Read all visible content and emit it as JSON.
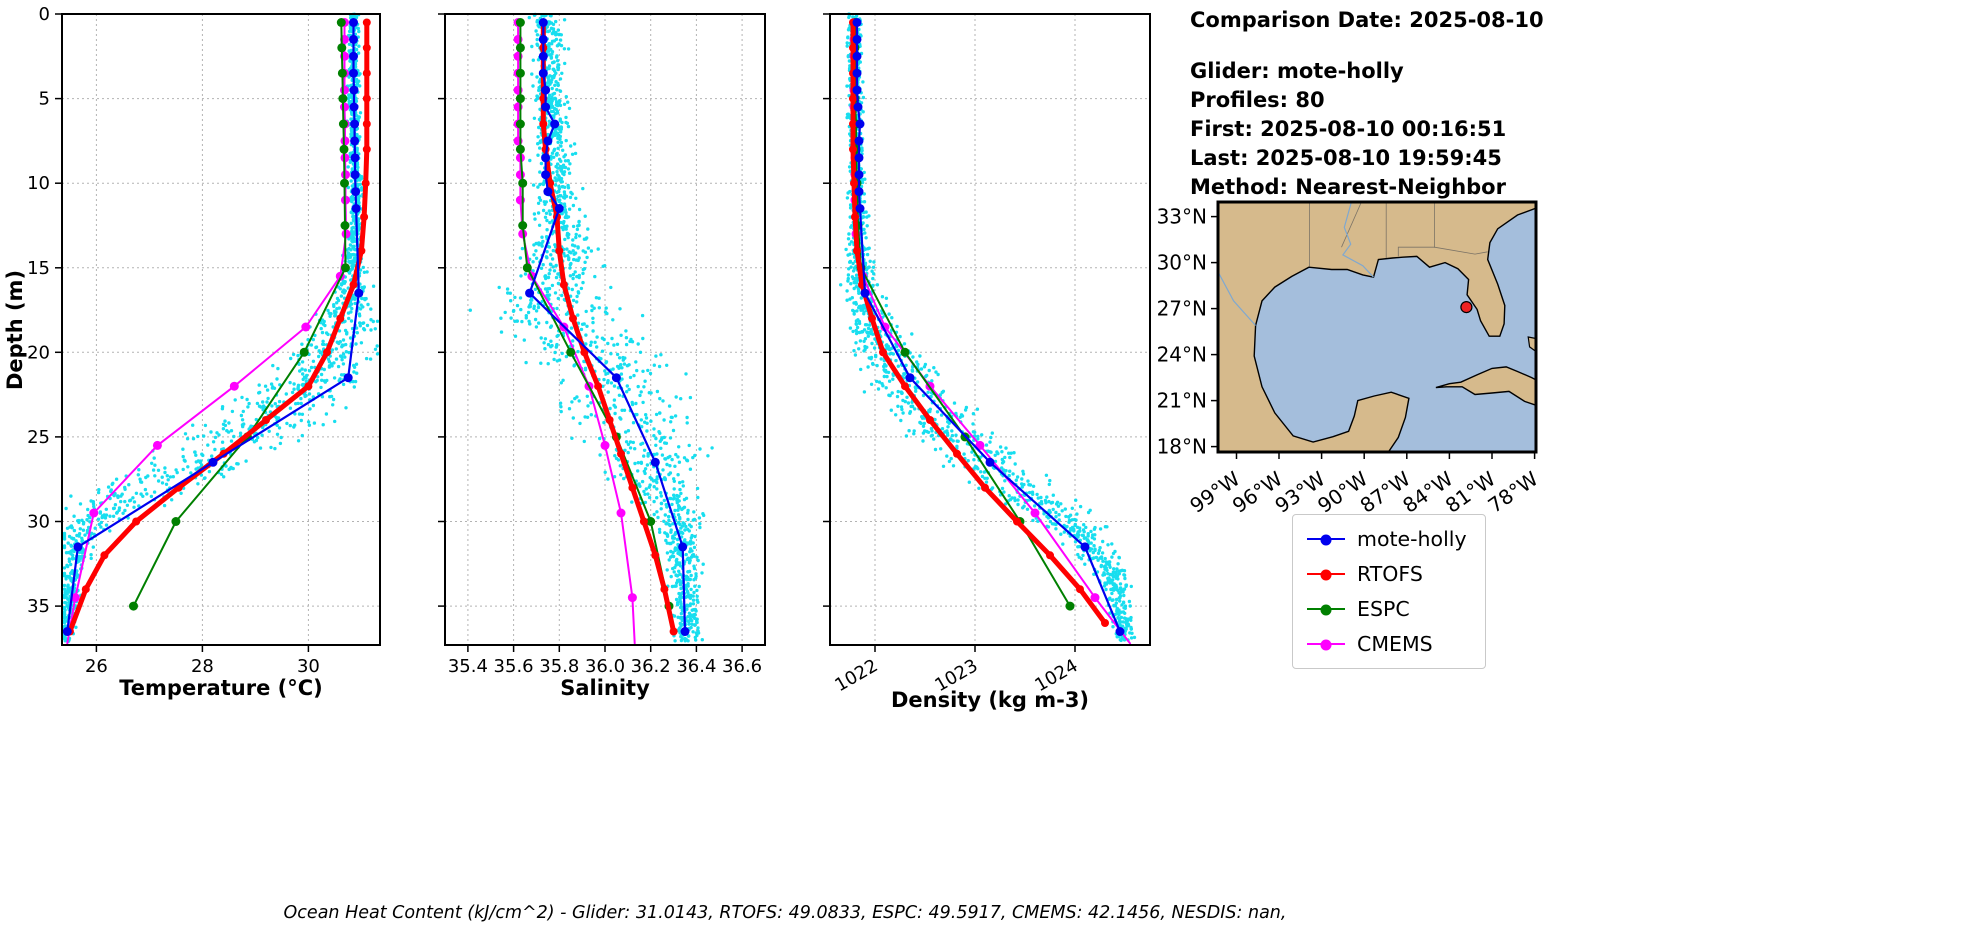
{
  "info": {
    "comparison_date": "Comparison Date: 2025-08-10",
    "glider": "Glider: mote-holly",
    "profiles": "Profiles: 80",
    "first": "First: 2025-08-10 00:16:51",
    "last": "Last: 2025-08-10 19:59:45",
    "method": "Method: Nearest-Neighbor"
  },
  "caption": "Ocean Heat Content (kJ/cm^2) - Glider: 31.0143,  RTOFS: 49.0833,  ESPC: 49.5917,  CMEMS: 42.1456,  NESDIS: nan,",
  "legend": {
    "items": [
      {
        "label": "mote-holly",
        "color": "#0000ee"
      },
      {
        "label": "RTOFS",
        "color": "#ff0000"
      },
      {
        "label": "ESPC",
        "color": "#008000"
      },
      {
        "label": "CMEMS",
        "color": "#ff00ff"
      }
    ]
  },
  "chart_data": [
    {
      "type": "line",
      "panel_name": "temperature",
      "xlabel": "Temperature (°C)",
      "ylabel": "Depth (m)",
      "xlim": [
        25.35,
        31.35
      ],
      "ylim": [
        0,
        37.3
      ],
      "xticks": [
        26,
        28,
        30
      ],
      "xticklabels": [
        "26",
        "28",
        "30"
      ],
      "yticks": [
        0,
        5,
        10,
        15,
        20,
        25,
        30,
        35
      ],
      "yticklabels": [
        "0",
        "5",
        "10",
        "15",
        "20",
        "25",
        "30",
        "35"
      ],
      "rotate_xticklabels": false,
      "grid": true,
      "scatter": {
        "name": "glider-raw-points",
        "color": "#00dbee",
        "seed": 7,
        "n": 1500,
        "depths": [
          0,
          5,
          10,
          13,
          15,
          17,
          19,
          21,
          23,
          25,
          27,
          29,
          31,
          33,
          35,
          37
        ],
        "mean": [
          30.85,
          30.85,
          30.88,
          30.9,
          30.85,
          30.8,
          30.6,
          30.3,
          29.6,
          28.8,
          27.6,
          26.3,
          25.7,
          25.55,
          25.5,
          25.45
        ],
        "spread": [
          0.07,
          0.07,
          0.08,
          0.1,
          0.15,
          0.3,
          0.5,
          0.6,
          0.8,
          0.85,
          0.8,
          0.6,
          0.3,
          0.15,
          0.12,
          0.1
        ]
      },
      "series": [
        {
          "name": "CMEMS",
          "color": "#ff00ff",
          "lw": 2,
          "marker_r": 4.5,
          "depths": [
            0.5,
            1.5,
            2.5,
            3.5,
            4.5,
            5.5,
            6.5,
            7.5,
            8.5,
            9.5,
            11,
            13,
            15.5,
            18.5,
            22,
            25.5,
            29.5,
            34.5,
            37.2
          ],
          "values": [
            30.68,
            30.68,
            30.68,
            30.68,
            30.68,
            30.68,
            30.69,
            30.69,
            30.69,
            30.7,
            30.7,
            30.71,
            30.6,
            29.95,
            28.6,
            27.15,
            25.95,
            25.6,
            25.45
          ]
        },
        {
          "name": "ESPC",
          "color": "#008000",
          "lw": 2,
          "marker_r": 4.5,
          "depths": [
            0.5,
            2,
            3.5,
            5,
            6.5,
            8,
            10,
            12.5,
            15,
            20,
            25,
            30,
            35
          ],
          "values": [
            30.62,
            30.63,
            30.64,
            30.65,
            30.66,
            30.67,
            30.68,
            30.69,
            30.7,
            29.92,
            28.85,
            27.5,
            26.7
          ]
        },
        {
          "name": "RTOFS",
          "color": "#ff0000",
          "lw": 5,
          "marker_r": 4,
          "depths": [
            0.5,
            2,
            3.5,
            5,
            6.5,
            8,
            10,
            12,
            14,
            16,
            18,
            20,
            22,
            24,
            26,
            28,
            30,
            32,
            34,
            36.5
          ],
          "values": [
            31.1,
            31.1,
            31.1,
            31.1,
            31.1,
            31.1,
            31.08,
            31.05,
            31.0,
            30.85,
            30.6,
            30.35,
            30.0,
            29.2,
            28.4,
            27.55,
            26.75,
            26.15,
            25.8,
            25.5
          ]
        },
        {
          "name": "mote-holly",
          "color": "#0000ee",
          "lw": 2.2,
          "marker_r": 4.5,
          "depths": [
            0.5,
            1.5,
            2.5,
            3.5,
            4.5,
            5.5,
            6.5,
            7.5,
            8.5,
            9.5,
            10.5,
            11.5,
            16.5,
            21.5,
            26.5,
            31.5,
            36.5
          ],
          "values": [
            30.85,
            30.85,
            30.85,
            30.85,
            30.86,
            30.86,
            30.87,
            30.87,
            30.88,
            30.88,
            30.89,
            30.9,
            30.95,
            30.75,
            28.2,
            25.65,
            25.45
          ]
        }
      ]
    },
    {
      "type": "line",
      "panel_name": "salinity",
      "xlabel": "Salinity",
      "ylabel": "Depth (m)",
      "xlim": [
        35.3,
        36.7
      ],
      "ylim": [
        0,
        37.3
      ],
      "xticks": [
        35.4,
        35.6,
        35.8,
        36.0,
        36.2,
        36.4,
        36.6
      ],
      "xticklabels": [
        "35.4",
        "35.6",
        "35.8",
        "36.0",
        "36.2",
        "36.4",
        "36.6"
      ],
      "yticks": [
        0,
        5,
        10,
        15,
        20,
        25,
        30,
        35
      ],
      "yticklabels": [
        "0",
        "5",
        "10",
        "15",
        "20",
        "25",
        "30",
        "35"
      ],
      "rotate_xticklabels": false,
      "grid": true,
      "scatter": {
        "name": "glider-raw-points",
        "color": "#00dbee",
        "seed": 11,
        "n": 1500,
        "depths": [
          0,
          5,
          10,
          13,
          15,
          17,
          19,
          21,
          23,
          25,
          27,
          29,
          31,
          33,
          35,
          37
        ],
        "mean": [
          35.75,
          35.76,
          35.78,
          35.82,
          35.8,
          35.75,
          35.85,
          36.0,
          36.1,
          36.15,
          36.2,
          36.28,
          36.33,
          36.35,
          36.36,
          36.36
        ],
        "spread": [
          0.05,
          0.05,
          0.06,
          0.09,
          0.12,
          0.18,
          0.22,
          0.22,
          0.2,
          0.18,
          0.15,
          0.1,
          0.06,
          0.05,
          0.04,
          0.04
        ]
      },
      "series": [
        {
          "name": "CMEMS",
          "color": "#ff00ff",
          "lw": 2,
          "marker_r": 4.5,
          "depths": [
            0.5,
            1.5,
            2.5,
            3.5,
            4.5,
            5.5,
            6.5,
            7.5,
            8.5,
            9.5,
            11,
            13,
            15.5,
            18.5,
            22,
            25.5,
            29.5,
            34.5,
            37.2
          ],
          "values": [
            35.62,
            35.62,
            35.62,
            35.62,
            35.62,
            35.62,
            35.62,
            35.62,
            35.63,
            35.63,
            35.63,
            35.64,
            35.68,
            35.82,
            35.93,
            36.0,
            36.07,
            36.12,
            36.13
          ]
        },
        {
          "name": "ESPC",
          "color": "#008000",
          "lw": 2,
          "marker_r": 4.5,
          "depths": [
            0.5,
            2,
            3.5,
            5,
            6.5,
            8,
            10,
            12.5,
            15,
            20,
            25,
            30,
            35
          ],
          "values": [
            35.63,
            35.63,
            35.63,
            35.63,
            35.63,
            35.63,
            35.64,
            35.64,
            35.66,
            35.85,
            36.05,
            36.2,
            36.28
          ]
        },
        {
          "name": "RTOFS",
          "color": "#ff0000",
          "lw": 5,
          "marker_r": 4,
          "depths": [
            0.5,
            2,
            3.5,
            5,
            6.5,
            8,
            10,
            12,
            14,
            16,
            18,
            20,
            22,
            24,
            26,
            28,
            30,
            32,
            34,
            36.5
          ],
          "values": [
            35.73,
            35.73,
            35.73,
            35.73,
            35.73,
            35.74,
            35.76,
            35.79,
            35.8,
            35.82,
            35.86,
            35.91,
            35.97,
            36.02,
            36.07,
            36.12,
            36.17,
            36.22,
            36.26,
            36.3
          ]
        },
        {
          "name": "mote-holly",
          "color": "#0000ee",
          "lw": 2.2,
          "marker_r": 4.5,
          "depths": [
            0.5,
            1.5,
            2.5,
            3.5,
            4.5,
            5.5,
            6.5,
            7.5,
            8.5,
            9.5,
            10.5,
            11.5,
            16.5,
            21.5,
            26.5,
            31.5,
            36.5
          ],
          "values": [
            35.73,
            35.73,
            35.73,
            35.73,
            35.74,
            35.74,
            35.78,
            35.75,
            35.74,
            35.74,
            35.75,
            35.8,
            35.67,
            36.05,
            36.22,
            36.34,
            36.35
          ]
        }
      ]
    },
    {
      "type": "line",
      "panel_name": "density",
      "xlabel": "Density (kg m-3)",
      "ylabel": "Depth (m)",
      "xlim": [
        1021.55,
        1024.75
      ],
      "ylim": [
        0,
        37.3
      ],
      "xticks": [
        1022,
        1023,
        1024
      ],
      "xticklabels": [
        "1022",
        "1023",
        "1024"
      ],
      "yticks": [
        0,
        5,
        10,
        15,
        20,
        25,
        30,
        35
      ],
      "yticklabels": [
        "0",
        "5",
        "10",
        "15",
        "20",
        "25",
        "30",
        "35"
      ],
      "rotate_xticklabels": true,
      "grid": true,
      "scatter": {
        "name": "glider-raw-points",
        "color": "#00dbee",
        "seed": 13,
        "n": 1500,
        "depths": [
          0,
          5,
          10,
          13,
          15,
          17,
          19,
          21,
          23,
          25,
          27,
          29,
          31,
          33,
          35,
          37
        ],
        "mean": [
          1021.8,
          1021.8,
          1021.82,
          1021.84,
          1021.86,
          1021.9,
          1022.0,
          1022.2,
          1022.5,
          1022.8,
          1023.2,
          1023.7,
          1024.1,
          1024.35,
          1024.45,
          1024.5
        ],
        "spread": [
          0.05,
          0.05,
          0.05,
          0.07,
          0.1,
          0.15,
          0.2,
          0.25,
          0.3,
          0.3,
          0.28,
          0.25,
          0.18,
          0.12,
          0.08,
          0.07
        ]
      },
      "series": [
        {
          "name": "CMEMS",
          "color": "#ff00ff",
          "lw": 2,
          "marker_r": 4.5,
          "depths": [
            0.5,
            1.5,
            2.5,
            3.5,
            4.5,
            5.5,
            6.5,
            7.5,
            8.5,
            9.5,
            11,
            13,
            15.5,
            18.5,
            22,
            25.5,
            29.5,
            34.5,
            37.2
          ],
          "values": [
            1021.79,
            1021.79,
            1021.79,
            1021.79,
            1021.79,
            1021.79,
            1021.8,
            1021.8,
            1021.8,
            1021.8,
            1021.8,
            1021.81,
            1021.88,
            1022.1,
            1022.55,
            1023.05,
            1023.6,
            1024.2,
            1024.55
          ]
        },
        {
          "name": "ESPC",
          "color": "#008000",
          "lw": 2,
          "marker_r": 4.5,
          "depths": [
            0.5,
            2,
            3.5,
            5,
            6.5,
            8,
            10,
            12.5,
            15,
            20,
            25,
            30,
            35
          ],
          "values": [
            1021.8,
            1021.8,
            1021.8,
            1021.8,
            1021.81,
            1021.81,
            1021.82,
            1021.83,
            1021.86,
            1022.3,
            1022.9,
            1023.45,
            1023.95
          ]
        },
        {
          "name": "RTOFS",
          "color": "#ff0000",
          "lw": 5,
          "marker_r": 4,
          "depths": [
            0.5,
            2,
            3.5,
            5,
            6.5,
            8,
            10,
            12,
            14,
            16,
            18,
            20,
            22,
            24,
            26,
            28,
            30,
            32,
            34,
            36
          ],
          "values": [
            1021.78,
            1021.78,
            1021.78,
            1021.78,
            1021.78,
            1021.78,
            1021.79,
            1021.8,
            1021.82,
            1021.87,
            1021.97,
            1022.08,
            1022.3,
            1022.55,
            1022.82,
            1023.1,
            1023.42,
            1023.75,
            1024.05,
            1024.3
          ]
        },
        {
          "name": "mote-holly",
          "color": "#0000ee",
          "lw": 2.2,
          "marker_r": 4.5,
          "depths": [
            0.5,
            1.5,
            2.5,
            3.5,
            4.5,
            5.5,
            6.5,
            7.5,
            8.5,
            9.5,
            10.5,
            11.5,
            16.5,
            21.5,
            26.5,
            31.5,
            36.5
          ],
          "values": [
            1021.82,
            1021.82,
            1021.82,
            1021.82,
            1021.82,
            1021.83,
            1021.85,
            1021.84,
            1021.84,
            1021.84,
            1021.84,
            1021.85,
            1021.9,
            1022.35,
            1023.15,
            1024.1,
            1024.45
          ]
        }
      ]
    }
  ],
  "map": {
    "land_color": "#d6ba8c",
    "ocean_color": "#a4bedc",
    "border_color": "#000000",
    "lat_ticks": [
      {
        "v": 33,
        "label": "33°N"
      },
      {
        "v": 30,
        "label": "30°N"
      },
      {
        "v": 27,
        "label": "27°N"
      },
      {
        "v": 24,
        "label": "24°N"
      },
      {
        "v": 21,
        "label": "21°N"
      },
      {
        "v": 18,
        "label": "18°N"
      }
    ],
    "lon_ticks": [
      {
        "v": -99,
        "label": "99°W"
      },
      {
        "v": -96,
        "label": "96°W"
      },
      {
        "v": -93,
        "label": "93°W"
      },
      {
        "v": -90,
        "label": "90°W"
      },
      {
        "v": -87,
        "label": "87°W"
      },
      {
        "v": -84,
        "label": "84°W"
      },
      {
        "v": -81,
        "label": "81°W"
      },
      {
        "v": -78,
        "label": "78°W"
      }
    ],
    "extent": {
      "lon": [
        -100.3,
        -77.9
      ],
      "lat": [
        17.65,
        33.95
      ]
    },
    "marker": {
      "lon": -82.8,
      "lat": 27.1,
      "color": "#ee2222"
    }
  }
}
